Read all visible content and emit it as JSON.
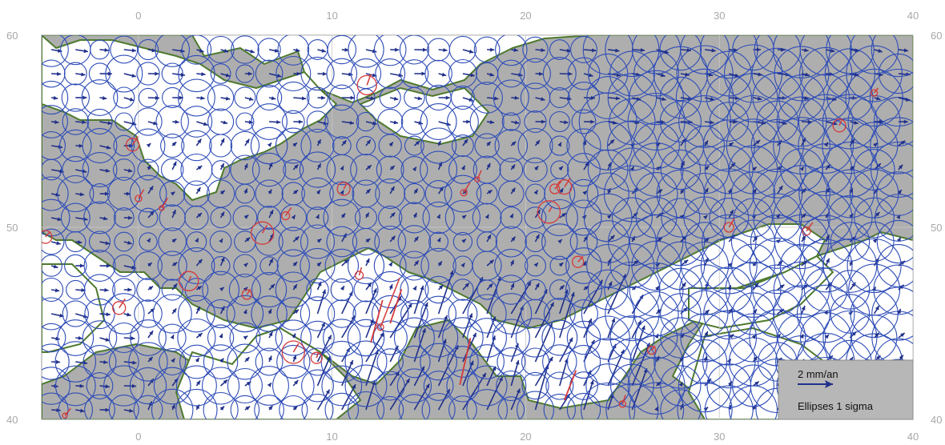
{
  "map": {
    "type": "velocity-field-map",
    "lon_range": [
      -5,
      40
    ],
    "lat_range": [
      40,
      60
    ],
    "lon_ticks": [
      0,
      10,
      20,
      30,
      40
    ],
    "lat_ticks": [
      40,
      50,
      60
    ],
    "lon_tick_labels": [
      "0",
      "10",
      "20",
      "30",
      "40"
    ],
    "lat_tick_labels": [
      "40",
      "50",
      "60"
    ],
    "grid": true
  },
  "legend": {
    "scale_label": "2 mm/an",
    "ellipse_label": "Ellipses 1 sigma",
    "placement": "bottom-right"
  },
  "colors": {
    "land": "#aeaeae",
    "sea": "#ffffff",
    "coast": "#4e7a2e",
    "ellipse_interpolated": "#2f4db8",
    "ellipse_station": "#d43a3a",
    "arrow_interpolated": "#1f2f8a",
    "arrow_station": "#d43a3a",
    "legend_bg": "#b7b7b7"
  }
}
